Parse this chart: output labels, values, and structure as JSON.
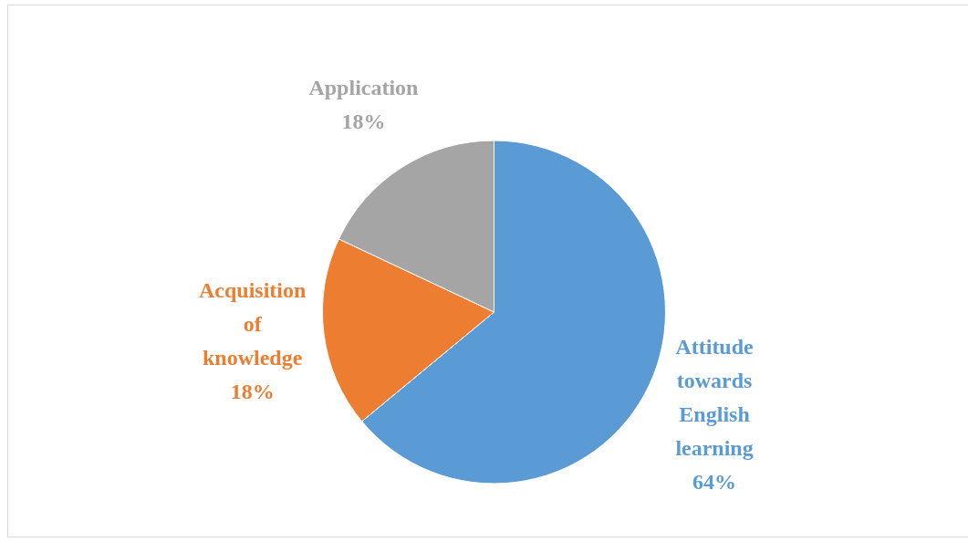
{
  "chart_data": {
    "type": "pie",
    "categories": [
      "Attitude towards English learning",
      "Acquisition of knowledge",
      "Application"
    ],
    "values": [
      64,
      18,
      18
    ],
    "colors": [
      "#5b9bd5",
      "#ed7d31",
      "#a5a5a5"
    ],
    "value_labels": [
      "64%",
      "18%",
      "18%"
    ],
    "legend": false
  }
}
